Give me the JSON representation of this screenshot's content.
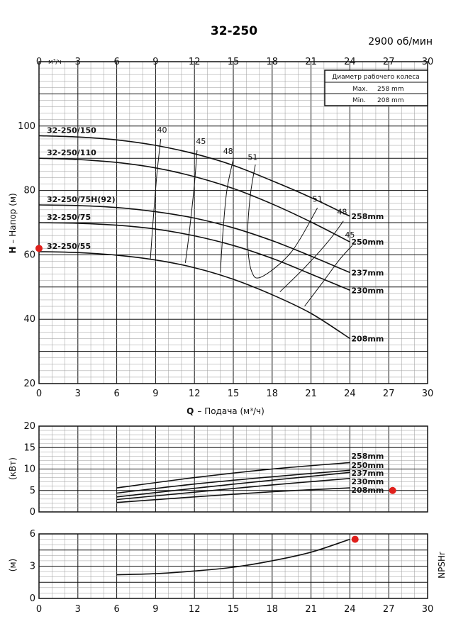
{
  "colors": {
    "marker": "#e0201c",
    "grid_major": "#111111",
    "grid_minor": "#9a9a9a",
    "curve": "#111111"
  },
  "chart_data": [
    {
      "type": "line",
      "title": "32-250",
      "speed": "2900 об/мин",
      "xlabel_bold": "Q",
      "xlabel": "– Подача (м³/ч)",
      "ylabel_bold": "H",
      "ylabel": "– Напор (м)",
      "top_unit": "м³/ч",
      "xlim": [
        0,
        30
      ],
      "ylim": [
        20,
        120
      ],
      "xticks": [
        "0",
        "3",
        "6",
        "9",
        "12",
        "15",
        "18",
        "21",
        "24",
        "27",
        "30"
      ],
      "yticks": [
        "20",
        "40",
        "60",
        "80",
        "100"
      ],
      "impeller_box": {
        "title": "Диаметр рабочего колеса",
        "max_label": "Max.",
        "max_value": "258 mm",
        "min_label": "Min.",
        "min_value": "208 mm"
      },
      "grid": true,
      "series": [
        {
          "name": "258mm",
          "model": "32-250/150",
          "x": [
            0,
            3,
            6,
            9,
            12,
            15,
            18,
            21,
            24
          ],
          "y": [
            97,
            96.6,
            95.7,
            94,
            91.4,
            87.8,
            83,
            77.8,
            72
          ]
        },
        {
          "name": "250mm",
          "model": "32-250/110",
          "x": [
            0,
            3,
            6,
            9,
            12,
            15,
            18,
            21,
            24
          ],
          "y": [
            90,
            89.6,
            88.7,
            87,
            84.3,
            80.6,
            75.8,
            70.2,
            64
          ]
        },
        {
          "name": "237mm",
          "model": "32-250/75H(92)",
          "x": [
            0,
            3,
            6,
            9,
            12,
            15,
            18,
            21,
            24
          ],
          "y": [
            75.5,
            75.3,
            74.7,
            73.4,
            71.4,
            68.4,
            64.4,
            59.6,
            54.5
          ]
        },
        {
          "name": "230mm",
          "model": "32-250/75",
          "x": [
            0,
            3,
            6,
            9,
            12,
            15,
            18,
            21,
            24
          ],
          "y": [
            70,
            69.8,
            69.2,
            68,
            65.9,
            62.9,
            58.9,
            54,
            49
          ]
        },
        {
          "name": "208mm",
          "model": "32-250/55",
          "x": [
            0,
            3,
            6,
            9,
            12,
            15,
            18,
            21,
            24
          ],
          "y": [
            61,
            60.7,
            59.9,
            58.4,
            56,
            52.4,
            47.6,
            41.8,
            34
          ]
        }
      ],
      "efficiency_curves": [
        {
          "label": "40",
          "x": [
            9.4,
            9.1,
            8.8,
            8.6
          ],
          "y": [
            96,
            85,
            70,
            58.8
          ]
        },
        {
          "label": "45",
          "x": [
            12.2,
            12.0,
            11.6,
            11.3
          ],
          "y": [
            92.5,
            82,
            67,
            57.5
          ]
        },
        {
          "label": "48",
          "x": [
            15.0,
            14.5,
            14.2,
            14.0
          ],
          "y": [
            89.7,
            80,
            67,
            54.5
          ]
        },
        {
          "label": "51",
          "x": [
            16.7,
            16.3,
            16.1,
            16.4,
            17.2,
            19.5,
            21.5
          ],
          "y": [
            88,
            78,
            65,
            55,
            53.2,
            61,
            74.6
          ]
        },
        {
          "label": "48",
          "x": [
            18.6,
            20.5,
            22.3,
            23.5
          ],
          "y": [
            48.5,
            56,
            64,
            70.5
          ]
        },
        {
          "label": "45",
          "x": [
            20.5,
            22,
            23.2,
            24.2
          ],
          "y": [
            44,
            52,
            58.5,
            63
          ]
        }
      ],
      "efficiency_label_positions": [
        {
          "label": "40",
          "x": 9.5,
          "y": 98
        },
        {
          "label": "45",
          "x": 12.5,
          "y": 94.5
        },
        {
          "label": "48",
          "x": 14.6,
          "y": 91.4
        },
        {
          "label": "51",
          "x": 16.5,
          "y": 89.5
        },
        {
          "label": "51",
          "x": 21.5,
          "y": 76.5
        },
        {
          "label": "48",
          "x": 23.4,
          "y": 72.5
        },
        {
          "label": "45",
          "x": 24.0,
          "y": 65.4
        }
      ],
      "markers": [
        {
          "x": 0,
          "y": 62
        }
      ]
    },
    {
      "type": "line",
      "ylabel": "(кВт)",
      "xlim": [
        0,
        30
      ],
      "ylim": [
        0,
        20
      ],
      "yticks": [
        "0",
        "5",
        "10",
        "15",
        "20"
      ],
      "grid": true,
      "series": [
        {
          "name": "258mm",
          "x": [
            6,
            12,
            18,
            24
          ],
          "y": [
            5.6,
            8.0,
            10.0,
            11.5
          ]
        },
        {
          "name": "250mm",
          "x": [
            6,
            12,
            18,
            24
          ],
          "y": [
            4.4,
            6.5,
            8.2,
            9.7
          ]
        },
        {
          "name": "237mm",
          "x": [
            6,
            12,
            18,
            24
          ],
          "y": [
            3.5,
            5.5,
            7.4,
            9.2
          ]
        },
        {
          "name": "230mm",
          "x": [
            6,
            12,
            18,
            24
          ],
          "y": [
            2.9,
            4.6,
            6.3,
            7.8
          ]
        },
        {
          "name": "208mm",
          "x": [
            6,
            12,
            18,
            24
          ],
          "y": [
            2.2,
            3.5,
            4.7,
            5.6
          ]
        }
      ],
      "markers": [
        {
          "x": 27.3,
          "y": 5.0
        }
      ]
    },
    {
      "type": "line",
      "ylabel": "(м)",
      "side_label": "NPSHr",
      "xlim": [
        0,
        30
      ],
      "ylim": [
        0,
        6
      ],
      "yticks": [
        "0",
        "3",
        "6"
      ],
      "xticks": [
        "0",
        "3",
        "6",
        "9",
        "12",
        "15",
        "18",
        "21",
        "24",
        "27",
        "30"
      ],
      "grid": true,
      "series": [
        {
          "x": [
            6,
            9,
            12,
            15,
            18,
            21,
            24
          ],
          "y": [
            2.2,
            2.3,
            2.55,
            2.9,
            3.5,
            4.3,
            5.5
          ]
        }
      ],
      "markers": [
        {
          "x": 24.4,
          "y": 5.5
        }
      ]
    }
  ]
}
